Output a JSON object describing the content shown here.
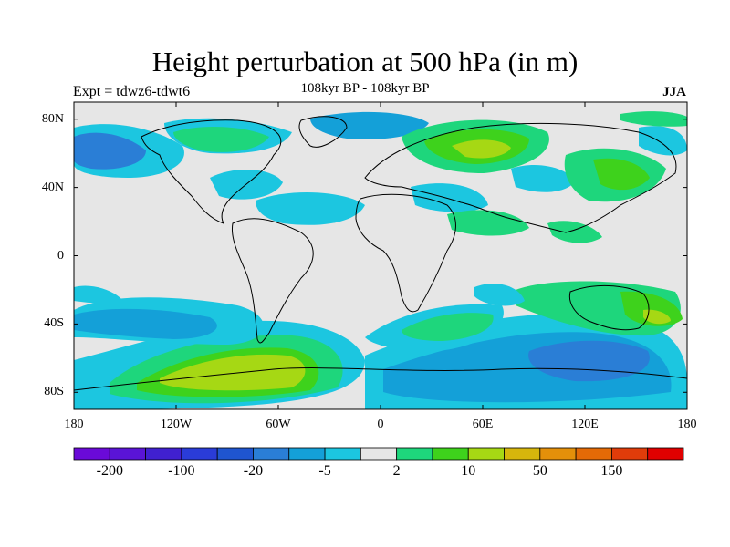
{
  "title": "Height perturbation at 500 hPa (in m)",
  "experiment_label": "Expt = tdwz6-tdwt6",
  "subtitle": "108kyr BP - 108kyr BP",
  "season": "JJA",
  "map": {
    "projection": "cylindrical-equidistant",
    "lon_range": [
      -180,
      180
    ],
    "lat_range": [
      -90,
      90
    ],
    "background_color": "#e6e6e6",
    "lat_ticks": [
      {
        "value": 80,
        "label": "80N"
      },
      {
        "value": 40,
        "label": "40N"
      },
      {
        "value": 0,
        "label": "0"
      },
      {
        "value": -40,
        "label": "40S"
      },
      {
        "value": -80,
        "label": "80S"
      }
    ],
    "lon_ticks": [
      {
        "value": -180,
        "label": "180"
      },
      {
        "value": -120,
        "label": "120W"
      },
      {
        "value": -60,
        "label": "60W"
      },
      {
        "value": 0,
        "label": "0"
      },
      {
        "value": 60,
        "label": "60E"
      },
      {
        "value": 120,
        "label": "120E"
      },
      {
        "value": 180,
        "label": "180"
      }
    ]
  },
  "colorbar": {
    "colors": [
      "#6a0ad8",
      "#5a14d6",
      "#4020d0",
      "#2a3cd8",
      "#1f55d0",
      "#2a7ed6",
      "#14a0d8",
      "#1cc6e0",
      "#e6e6e6",
      "#1ed67c",
      "#3ed21c",
      "#a6d814",
      "#d6b60c",
      "#e4900a",
      "#e46a06",
      "#e03c0a",
      "#e00000"
    ],
    "labels": [
      "-200",
      "-100",
      "-20",
      "-5",
      "2",
      "10",
      "50",
      "150"
    ]
  }
}
